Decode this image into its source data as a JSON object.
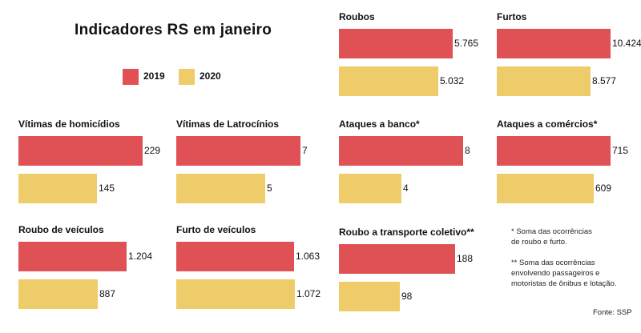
{
  "title": "Indicadores RS em janeiro",
  "legend": [
    {
      "label": "2019",
      "color": "#df5155"
    },
    {
      "label": "2020",
      "color": "#efcc6a"
    }
  ],
  "chart_data": [
    {
      "type": "bar",
      "title": "Roubos",
      "categories": [
        "2019",
        "2020"
      ],
      "values": [
        5765,
        5032
      ],
      "labels": [
        "5.765",
        "5.032"
      ]
    },
    {
      "type": "bar",
      "title": "Furtos",
      "categories": [
        "2019",
        "2020"
      ],
      "values": [
        10424,
        8577
      ],
      "labels": [
        "10.424",
        "8.577"
      ]
    },
    {
      "type": "bar",
      "title": "Vítimas de homicídios",
      "categories": [
        "2019",
        "2020"
      ],
      "values": [
        229,
        145
      ],
      "labels": [
        "229",
        "145"
      ]
    },
    {
      "type": "bar",
      "title": "Vítimas de Latrocínios",
      "categories": [
        "2019",
        "2020"
      ],
      "values": [
        7,
        5
      ],
      "labels": [
        "7",
        "5"
      ]
    },
    {
      "type": "bar",
      "title": "Ataques a banco*",
      "categories": [
        "2019",
        "2020"
      ],
      "values": [
        8,
        4
      ],
      "labels": [
        "8",
        "4"
      ]
    },
    {
      "type": "bar",
      "title": "Ataques a comércios*",
      "categories": [
        "2019",
        "2020"
      ],
      "values": [
        715,
        609
      ],
      "labels": [
        "715",
        "609"
      ]
    },
    {
      "type": "bar",
      "title": "Roubo de veículos",
      "categories": [
        "2019",
        "2020"
      ],
      "values": [
        1204,
        887
      ],
      "labels": [
        "1.204",
        "887"
      ]
    },
    {
      "type": "bar",
      "title": "Furto de veículos",
      "categories": [
        "2019",
        "2020"
      ],
      "values": [
        1063,
        1072
      ],
      "labels": [
        "1.063",
        "1.072"
      ]
    },
    {
      "type": "bar",
      "title": "Roubo a transporte coletivo**",
      "categories": [
        "2019",
        "2020"
      ],
      "values": [
        188,
        98
      ],
      "labels": [
        "188",
        "98"
      ]
    }
  ],
  "notes": {
    "note1_line1": "* Soma das ocorrências",
    "note1_line2": "de roubo e furto.",
    "note2_line1": "** Soma das ocorrências",
    "note2_line2": "envolvendo passageiros e",
    "note2_line3": "motoristas de ônibus e lotação."
  },
  "source": "Fonte: SSP"
}
